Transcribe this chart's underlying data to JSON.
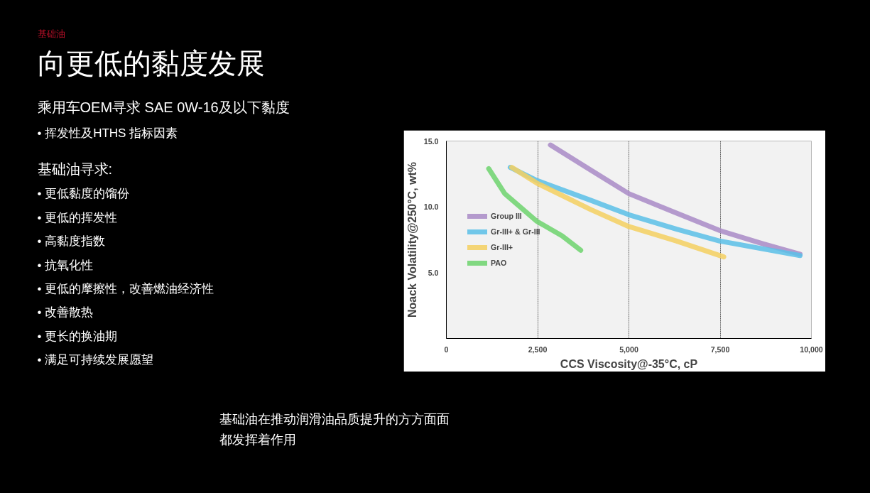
{
  "chart_data": {
    "type": "line",
    "title": "向更低的黏度发展",
    "subtitle": "基础油",
    "annotations": [
      "乘用车OEM寻求 SAE 0W-16及以下黏度",
      "• 挥发性及HTHS 指标因素",
      "基础油寻求:",
      "• 更低黏度的馏份",
      "• 更低的挥发性",
      "• 高黏度指数",
      "• 抗氧化性",
      "• 更低的摩擦性，改善燃油经济性",
      "• 改善散热",
      "• 更长的换油期",
      "• 满足可持续发展愿望",
      "基础油在推动润滑油品质提升的方方面面",
      "都发挥着作用"
    ],
    "xlabel": "CCS Viscosity@-35°C, cP",
    "ylabel": "Noack Volatility@250°C, wt%",
    "xlim": [
      0,
      10000
    ],
    "ylim": [
      0,
      15
    ],
    "xticks": [
      0,
      {
        "value": 2500,
        "label": "2,500"
      },
      {
        "value": 5000,
        "label": "5,000"
      },
      {
        "value": 7500,
        "label": "7,500"
      },
      {
        "value": 10000,
        "label": "10,000"
      }
    ],
    "yticks": [
      {
        "value": 5,
        "label": "5.0"
      },
      {
        "value": 10,
        "label": "10.0"
      },
      {
        "value": 15,
        "label": "15.0"
      }
    ],
    "grid": "x",
    "legend": "left",
    "line_style": "solid",
    "marker": "none",
    "series": [
      {
        "name": "Group III",
        "color": "#a98bc7",
        "x": [
          2850,
          3950,
          5000,
          6150,
          7490,
          8670,
          9690
        ],
        "values": [
          14.7,
          12.8,
          11.0,
          9.7,
          8.2,
          7.2,
          6.4
        ]
      },
      {
        "name": "Gr-III+ & Gr-III",
        "color": "#5bc0e8",
        "x": [
          1750,
          2480,
          3950,
          5000,
          6310,
          7490,
          9690
        ],
        "values": [
          13.0,
          12.0,
          10.5,
          9.4,
          8.3,
          7.4,
          6.3
        ]
      },
      {
        "name": "Gr-III+",
        "color": "#f5d060",
        "x": [
          1790,
          2480,
          3950,
          5000,
          6310,
          7600
        ],
        "values": [
          13.0,
          11.8,
          9.8,
          8.5,
          7.4,
          6.2
        ]
      },
      {
        "name": "PAO",
        "color": "#6dd46d",
        "x": [
          1160,
          1600,
          2480,
          3170,
          3680
        ],
        "values": [
          12.9,
          11.0,
          8.9,
          7.8,
          6.7
        ]
      }
    ]
  }
}
